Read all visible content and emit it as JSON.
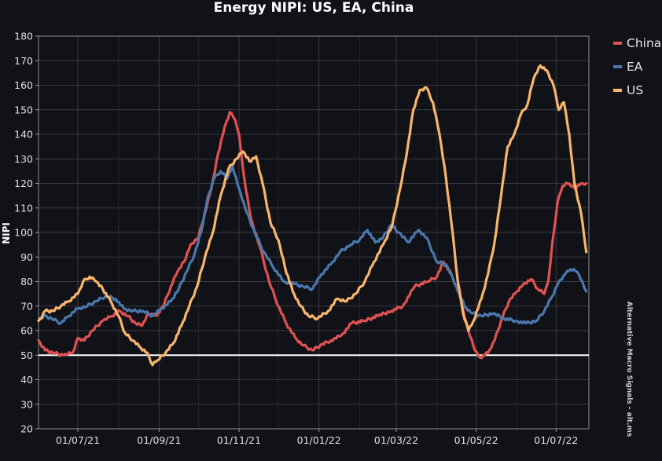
{
  "chart_data": {
    "type": "line",
    "title": "Energy NIPI: US, EA, China",
    "ylabel": "NIPI",
    "xlabel": "",
    "ylim": [
      20,
      180
    ],
    "yticks": [
      20,
      30,
      40,
      50,
      60,
      70,
      80,
      90,
      100,
      110,
      120,
      130,
      140,
      150,
      160,
      170,
      180
    ],
    "xlim": [
      "2021-06-01",
      "2022-07-26"
    ],
    "xticks": [
      {
        "label": "01/07/21",
        "date": "2021-07-01"
      },
      {
        "label": "01/09/21",
        "date": "2021-09-01"
      },
      {
        "label": "01/11/21",
        "date": "2021-11-01"
      },
      {
        "label": "01/01/22",
        "date": "2022-01-01"
      },
      {
        "label": "01/03/22",
        "date": "2022-03-01"
      },
      {
        "label": "01/05/22",
        "date": "2022-05-01"
      },
      {
        "label": "01/07/22",
        "date": "2022-07-01"
      }
    ],
    "grid": true,
    "hline": 50,
    "legend_position": "top-right",
    "watermark": "Alternative Macro Signals - alt.ms",
    "series": [
      {
        "name": "China",
        "color": "#e05252",
        "points": [
          [
            "2021-06-01",
            56
          ],
          [
            "2021-06-06",
            52
          ],
          [
            "2021-06-12",
            51
          ],
          [
            "2021-06-20",
            50
          ],
          [
            "2021-06-27",
            51
          ],
          [
            "2021-07-01",
            57
          ],
          [
            "2021-07-06",
            56
          ],
          [
            "2021-07-12",
            60
          ],
          [
            "2021-07-20",
            64
          ],
          [
            "2021-07-27",
            66
          ],
          [
            "2021-08-02",
            68
          ],
          [
            "2021-08-08",
            66
          ],
          [
            "2021-08-14",
            63
          ],
          [
            "2021-08-19",
            62
          ],
          [
            "2021-08-24",
            67
          ],
          [
            "2021-08-30",
            66
          ],
          [
            "2021-09-05",
            71
          ],
          [
            "2021-09-10",
            78
          ],
          [
            "2021-09-15",
            84
          ],
          [
            "2021-09-20",
            88
          ],
          [
            "2021-09-25",
            95
          ],
          [
            "2021-10-01",
            98
          ],
          [
            "2021-10-06",
            108
          ],
          [
            "2021-10-11",
            118
          ],
          [
            "2021-10-16",
            132
          ],
          [
            "2021-10-21",
            143
          ],
          [
            "2021-10-25",
            149
          ],
          [
            "2021-10-29",
            146
          ],
          [
            "2021-11-01",
            140
          ],
          [
            "2021-11-05",
            122
          ],
          [
            "2021-11-10",
            106
          ],
          [
            "2021-11-17",
            94
          ],
          [
            "2021-11-24",
            80
          ],
          [
            "2021-12-01",
            70
          ],
          [
            "2021-12-07",
            63
          ],
          [
            "2021-12-14",
            57
          ],
          [
            "2021-12-20",
            54
          ],
          [
            "2021-12-27",
            52
          ],
          [
            "2022-01-02",
            54
          ],
          [
            "2022-01-10",
            56
          ],
          [
            "2022-01-18",
            58
          ],
          [
            "2022-01-26",
            63
          ],
          [
            "2022-02-05",
            64
          ],
          [
            "2022-02-15",
            66
          ],
          [
            "2022-02-25",
            68
          ],
          [
            "2022-03-06",
            70
          ],
          [
            "2022-03-15",
            78
          ],
          [
            "2022-03-25",
            80
          ],
          [
            "2022-04-01",
            82
          ],
          [
            "2022-04-06",
            88
          ],
          [
            "2022-04-12",
            83
          ],
          [
            "2022-04-18",
            75
          ],
          [
            "2022-04-25",
            60
          ],
          [
            "2022-04-30",
            52
          ],
          [
            "2022-05-04",
            49
          ],
          [
            "2022-05-10",
            51
          ],
          [
            "2022-05-15",
            56
          ],
          [
            "2022-05-20",
            64
          ],
          [
            "2022-05-26",
            72
          ],
          [
            "2022-06-01",
            76
          ],
          [
            "2022-06-06",
            79
          ],
          [
            "2022-06-12",
            81
          ],
          [
            "2022-06-17",
            77
          ],
          [
            "2022-06-22",
            75
          ],
          [
            "2022-06-25",
            80
          ],
          [
            "2022-06-28",
            95
          ],
          [
            "2022-07-02",
            112
          ],
          [
            "2022-07-06",
            119
          ],
          [
            "2022-07-10",
            120
          ],
          [
            "2022-07-15",
            118
          ],
          [
            "2022-07-20",
            120
          ],
          [
            "2022-07-24",
            120
          ]
        ]
      },
      {
        "name": "EA",
        "color": "#4a78ad",
        "points": [
          [
            "2021-06-01",
            64
          ],
          [
            "2021-06-05",
            66
          ],
          [
            "2021-06-11",
            65
          ],
          [
            "2021-06-18",
            63
          ],
          [
            "2021-06-24",
            66
          ],
          [
            "2021-07-01",
            69
          ],
          [
            "2021-07-08",
            70
          ],
          [
            "2021-07-15",
            72
          ],
          [
            "2021-07-22",
            74
          ],
          [
            "2021-07-30",
            73
          ],
          [
            "2021-08-05",
            69
          ],
          [
            "2021-08-12",
            68
          ],
          [
            "2021-08-20",
            68
          ],
          [
            "2021-08-27",
            66
          ],
          [
            "2021-09-03",
            69
          ],
          [
            "2021-09-10",
            72
          ],
          [
            "2021-09-16",
            77
          ],
          [
            "2021-09-22",
            84
          ],
          [
            "2021-09-28",
            91
          ],
          [
            "2021-10-03",
            100
          ],
          [
            "2021-10-08",
            114
          ],
          [
            "2021-10-13",
            122
          ],
          [
            "2021-10-18",
            125
          ],
          [
            "2021-10-23",
            122
          ],
          [
            "2021-10-27",
            127
          ],
          [
            "2021-11-01",
            118
          ],
          [
            "2021-11-07",
            108
          ],
          [
            "2021-11-13",
            100
          ],
          [
            "2021-11-20",
            92
          ],
          [
            "2021-11-27",
            86
          ],
          [
            "2021-12-05",
            80
          ],
          [
            "2021-12-13",
            79
          ],
          [
            "2021-12-20",
            78
          ],
          [
            "2021-12-27",
            77
          ],
          [
            "2022-01-03",
            83
          ],
          [
            "2022-01-10",
            87
          ],
          [
            "2022-01-17",
            92
          ],
          [
            "2022-01-25",
            95
          ],
          [
            "2022-02-01",
            97
          ],
          [
            "2022-02-07",
            101
          ],
          [
            "2022-02-13",
            96
          ],
          [
            "2022-02-19",
            98
          ],
          [
            "2022-02-25",
            103
          ],
          [
            "2022-03-03",
            100
          ],
          [
            "2022-03-10",
            96
          ],
          [
            "2022-03-18",
            101
          ],
          [
            "2022-03-24",
            98
          ],
          [
            "2022-04-01",
            88
          ],
          [
            "2022-04-08",
            87
          ],
          [
            "2022-04-16",
            78
          ],
          [
            "2022-04-22",
            70
          ],
          [
            "2022-04-28",
            67
          ],
          [
            "2022-05-05",
            66
          ],
          [
            "2022-05-14",
            67
          ],
          [
            "2022-05-22",
            65
          ],
          [
            "2022-05-31",
            64
          ],
          [
            "2022-06-08",
            63
          ],
          [
            "2022-06-16",
            64
          ],
          [
            "2022-06-22",
            68
          ],
          [
            "2022-06-28",
            74
          ],
          [
            "2022-07-03",
            80
          ],
          [
            "2022-07-08",
            83
          ],
          [
            "2022-07-12",
            85
          ],
          [
            "2022-07-17",
            84
          ],
          [
            "2022-07-21",
            80
          ],
          [
            "2022-07-24",
            76
          ]
        ]
      },
      {
        "name": "US",
        "color": "#f9b56c",
        "points": [
          [
            "2021-06-01",
            64
          ],
          [
            "2021-06-06",
            68
          ],
          [
            "2021-06-12",
            68
          ],
          [
            "2021-06-18",
            70
          ],
          [
            "2021-06-24",
            72
          ],
          [
            "2021-07-01",
            75
          ],
          [
            "2021-07-05",
            80
          ],
          [
            "2021-07-10",
            82
          ],
          [
            "2021-07-15",
            80
          ],
          [
            "2021-07-20",
            77
          ],
          [
            "2021-07-26",
            72
          ],
          [
            "2021-08-01",
            66
          ],
          [
            "2021-08-06",
            59
          ],
          [
            "2021-08-12",
            56
          ],
          [
            "2021-08-18",
            53
          ],
          [
            "2021-08-23",
            51
          ],
          [
            "2021-08-27",
            46
          ],
          [
            "2021-08-31",
            48
          ],
          [
            "2021-09-06",
            51
          ],
          [
            "2021-09-12",
            55
          ],
          [
            "2021-09-18",
            62
          ],
          [
            "2021-09-24",
            70
          ],
          [
            "2021-09-30",
            78
          ],
          [
            "2021-10-06",
            90
          ],
          [
            "2021-10-12",
            100
          ],
          [
            "2021-10-18",
            115
          ],
          [
            "2021-10-24",
            126
          ],
          [
            "2021-10-30",
            130
          ],
          [
            "2021-11-04",
            133
          ],
          [
            "2021-11-09",
            129
          ],
          [
            "2021-11-14",
            131
          ],
          [
            "2021-11-19",
            120
          ],
          [
            "2021-11-25",
            104
          ],
          [
            "2021-12-01",
            97
          ],
          [
            "2021-12-06",
            86
          ],
          [
            "2021-12-12",
            76
          ],
          [
            "2021-12-18",
            70
          ],
          [
            "2021-12-24",
            66
          ],
          [
            "2021-12-31",
            65
          ],
          [
            "2022-01-08",
            68
          ],
          [
            "2022-01-15",
            73
          ],
          [
            "2022-01-22",
            72
          ],
          [
            "2022-01-29",
            75
          ],
          [
            "2022-02-05",
            80
          ],
          [
            "2022-02-12",
            88
          ],
          [
            "2022-02-19",
            95
          ],
          [
            "2022-02-26",
            103
          ],
          [
            "2022-03-04",
            118
          ],
          [
            "2022-03-09",
            132
          ],
          [
            "2022-03-14",
            150
          ],
          [
            "2022-03-19",
            158
          ],
          [
            "2022-03-24",
            159
          ],
          [
            "2022-03-29",
            153
          ],
          [
            "2022-04-03",
            140
          ],
          [
            "2022-04-08",
            122
          ],
          [
            "2022-04-13",
            100
          ],
          [
            "2022-04-17",
            80
          ],
          [
            "2022-04-21",
            67
          ],
          [
            "2022-04-25",
            60
          ],
          [
            "2022-04-29",
            64
          ],
          [
            "2022-05-05",
            73
          ],
          [
            "2022-05-10",
            83
          ],
          [
            "2022-05-15",
            96
          ],
          [
            "2022-05-20",
            115
          ],
          [
            "2022-05-25",
            135
          ],
          [
            "2022-05-30",
            140
          ],
          [
            "2022-06-04",
            148
          ],
          [
            "2022-06-09",
            152
          ],
          [
            "2022-06-14",
            163
          ],
          [
            "2022-06-19",
            168
          ],
          [
            "2022-06-24",
            166
          ],
          [
            "2022-06-29",
            160
          ],
          [
            "2022-07-03",
            150
          ],
          [
            "2022-07-07",
            153
          ],
          [
            "2022-07-11",
            140
          ],
          [
            "2022-07-15",
            120
          ],
          [
            "2022-07-20",
            108
          ],
          [
            "2022-07-24",
            92
          ]
        ]
      }
    ]
  }
}
